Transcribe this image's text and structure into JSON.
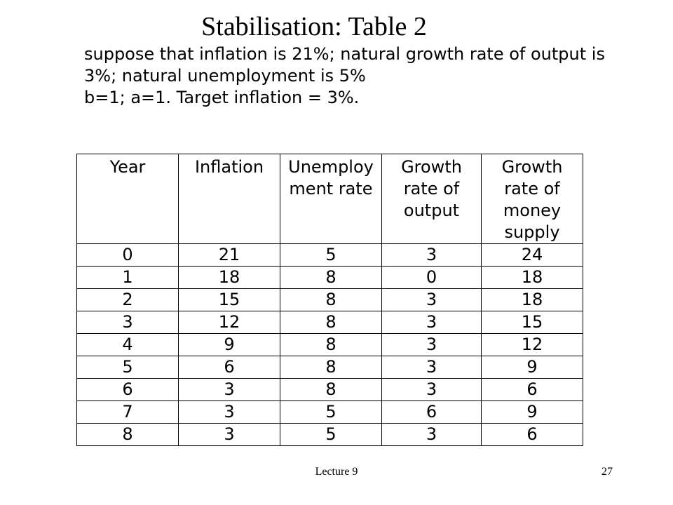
{
  "slide": {
    "title": "Stabilisation: Table 2",
    "intro_lines": [
      "suppose that inflation is 21%;  natural growth rate of output is",
      "3%; natural unemployment is 5%",
      "b=1;  a=1. Target inflation = 3%."
    ]
  },
  "table": {
    "headers": [
      "Year",
      "Inflation",
      "Unemploy ment rate",
      "Growth rate of output",
      "Growth rate of money supply"
    ],
    "header_lines": [
      [
        "Year"
      ],
      [
        "Inflation"
      ],
      [
        "Unemploy",
        "ment rate"
      ],
      [
        "Growth",
        "rate of",
        "output"
      ],
      [
        "Growth",
        "rate of",
        "money",
        "supply"
      ]
    ],
    "rows": [
      [
        "0",
        "21",
        "5",
        "3",
        "24"
      ],
      [
        "1",
        "18",
        "8",
        "0",
        "18"
      ],
      [
        "2",
        "15",
        "8",
        "3",
        "18"
      ],
      [
        "3",
        "12",
        "8",
        "3",
        "15"
      ],
      [
        "4",
        "9",
        "8",
        "3",
        "12"
      ],
      [
        "5",
        "6",
        "8",
        "3",
        "9"
      ],
      [
        "6",
        "3",
        "8",
        "3",
        "6"
      ],
      [
        "7",
        "3",
        "5",
        "6",
        "9"
      ],
      [
        "8",
        "3",
        "5",
        "3",
        "6"
      ]
    ]
  },
  "footer": {
    "lecture": "Lecture 9",
    "page_number": "27"
  }
}
